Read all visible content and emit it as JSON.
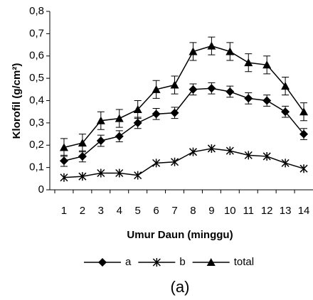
{
  "chart_data": {
    "type": "line",
    "ylabel": "Klorofil (g/cm²)",
    "xlabel": "Umur Daun (minggu)",
    "caption": "(a)",
    "categories": [
      1,
      2,
      3,
      4,
      5,
      6,
      7,
      8,
      9,
      10,
      11,
      12,
      13,
      14
    ],
    "series": [
      {
        "name": "a",
        "color": "#000000",
        "marker": "diamond",
        "values": [
          0.13,
          0.15,
          0.22,
          0.24,
          0.3,
          0.34,
          0.345,
          0.45,
          0.455,
          0.44,
          0.41,
          0.4,
          0.35,
          0.25
        ],
        "errors": [
          0.025,
          0.025,
          0.025,
          0.025,
          0.025,
          0.025,
          0.025,
          0.025,
          0.025,
          0.025,
          0.025,
          0.025,
          0.025,
          0.025
        ]
      },
      {
        "name": "b",
        "color": "#000000",
        "marker": "star",
        "values": [
          0.055,
          0.06,
          0.075,
          0.075,
          0.065,
          0.12,
          0.125,
          0.17,
          0.185,
          0.175,
          0.155,
          0.15,
          0.12,
          0.095
        ]
      },
      {
        "name": "total",
        "color": "#000000",
        "marker": "triangle",
        "values": [
          0.19,
          0.21,
          0.31,
          0.32,
          0.36,
          0.45,
          0.47,
          0.62,
          0.645,
          0.62,
          0.57,
          0.56,
          0.465,
          0.35
        ],
        "errors": [
          0.04,
          0.04,
          0.04,
          0.04,
          0.04,
          0.04,
          0.04,
          0.04,
          0.04,
          0.04,
          0.04,
          0.04,
          0.04,
          0.04
        ]
      }
    ],
    "ylim": [
      0,
      0.8
    ],
    "yticks": [
      0,
      {
        "value": 0.1,
        "label": "0,1"
      },
      {
        "value": 0.2,
        "label": "0,2"
      },
      {
        "value": 0.3,
        "label": "0,3"
      },
      {
        "value": 0.4,
        "label": "0,4"
      },
      {
        "value": 0.5,
        "label": "0,5"
      },
      {
        "value": 0.6,
        "label": "0,6"
      },
      {
        "value": 0.7,
        "label": "0,7"
      },
      {
        "value": 0.8,
        "label": "0,8"
      }
    ],
    "grid": false,
    "legend": "bottom"
  }
}
